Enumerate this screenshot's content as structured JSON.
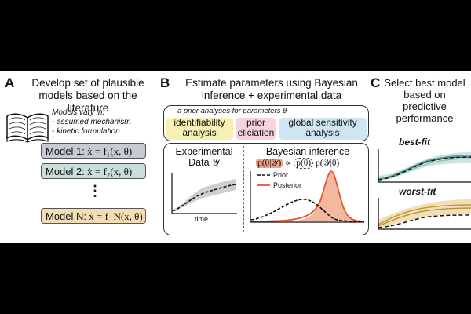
{
  "panel_a": {
    "letter": "A",
    "heading_line1": "Develop set of plausible",
    "heading_line2": "models based on the literature",
    "vary_title": "Models vary in:",
    "vary_item1": "- assumed mechanism",
    "vary_item2": "- kinetic formulation",
    "models": [
      {
        "label": "Model 1:",
        "eq": "ẋ = f₁(x, θ)",
        "color": "#c5cad3"
      },
      {
        "label": "Model 2:",
        "eq": "ẋ = f₂(x, θ)",
        "color": "#c9dedb"
      },
      {
        "label": "Model N:",
        "eq": "ẋ = f_N(x, θ)",
        "color": "#f3ddb4"
      }
    ],
    "ellipsis": "⋮"
  },
  "panel_b": {
    "letter": "B",
    "heading_line1": "Estimate parameters using Bayesian",
    "heading_line2": "inference + experimental data",
    "prior_title": "a prior analyses for parameters θ",
    "analyses": [
      {
        "line1": "identifiability",
        "line2": "analysis",
        "color": "#f6f0b3"
      },
      {
        "line1": "prior",
        "line2": "eliciation",
        "color": "#f7d3df"
      },
      {
        "line1": "global sensitivity",
        "line2": "analysis",
        "color": "#cfe5f3"
      }
    ],
    "exp_title_line1": "Experimental",
    "exp_title_line2": "Data 𝒴",
    "time_label": "time",
    "bayes_title": "Bayesian inference",
    "bayes_eq_lhs": "p(θ|𝒴)",
    "bayes_eq_prop": "∝",
    "bayes_eq_prior": "p(θ)",
    "bayes_eq_like": "p(𝒴|θ)",
    "legend_prior": "Prior",
    "legend_posterior": "Posterior",
    "posterior_color": "#e2572b",
    "posterior_fill": "#f4b7a0"
  },
  "panel_c": {
    "letter": "C",
    "heading_line1": "Select best model",
    "heading_line2": "based on",
    "heading_line3": "predictive",
    "heading_line4": "performance",
    "best_label": "best-fit",
    "worst_label": "worst-fit",
    "best_color": "#2f7f7a",
    "worst_color": "#c9972b"
  }
}
